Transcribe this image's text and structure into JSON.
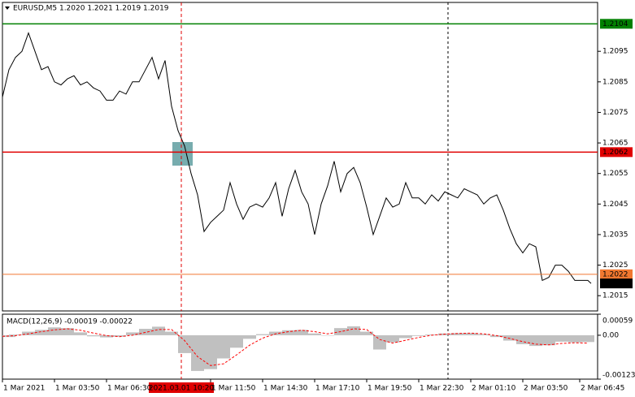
{
  "chart_data": [
    {
      "type": "line",
      "title": "EURUSD,M5  1.2020 1.2021 1.2019 1.2019",
      "color": "#000000",
      "x": [
        70,
        90,
        110,
        130,
        150,
        170,
        190,
        210,
        230,
        250,
        270,
        290,
        310,
        330,
        350,
        370,
        390,
        410,
        430,
        450,
        470,
        490,
        510,
        530,
        550,
        570,
        590,
        610,
        630,
        650,
        670,
        690,
        710,
        730,
        750,
        770,
        790,
        810,
        830,
        850,
        870,
        890,
        910,
        930,
        950,
        970,
        990,
        1010,
        1030,
        1050,
        1070,
        1090,
        1110,
        1130,
        1150,
        1170,
        1190,
        1210,
        1230,
        1250,
        1270,
        1290,
        1310,
        1330,
        1350,
        1370,
        1390,
        1410,
        1430,
        1450,
        1470,
        1490,
        1510,
        1530,
        1550,
        1570,
        1590,
        1610,
        1630,
        1650,
        1670,
        1690,
        1710,
        1730,
        1750,
        1770,
        1790,
        1810,
        1830,
        1850,
        1870,
        1880
      ],
      "values": [
        1.208,
        1.2089,
        1.2093,
        1.2095,
        1.2101,
        1.2095,
        1.2089,
        1.209,
        1.2085,
        1.2084,
        1.2086,
        1.2087,
        1.2084,
        1.2085,
        1.2083,
        1.2082,
        1.2079,
        1.2079,
        1.2082,
        1.2081,
        1.2085,
        1.2085,
        1.2089,
        1.2093,
        1.2086,
        1.2092,
        1.2077,
        1.2069,
        1.2064,
        1.2055,
        1.2048,
        1.2036,
        1.2039,
        1.2041,
        1.2043,
        1.2052,
        1.2045,
        1.204,
        1.2044,
        1.2045,
        1.2044,
        1.2047,
        1.2052,
        1.2041,
        1.205,
        1.2056,
        1.2049,
        1.2045,
        1.2035,
        1.2045,
        1.2051,
        1.2059,
        1.2049,
        1.2055,
        1.2057,
        1.2052,
        1.2044,
        1.2035,
        1.2041,
        1.2047,
        1.2044,
        1.2045,
        1.2052,
        1.2047,
        1.2047,
        1.2045,
        1.2048,
        1.2046,
        1.2049,
        1.2048,
        1.2047,
        1.205,
        1.2049,
        1.2048,
        1.2045,
        1.2047,
        1.2048,
        1.2043,
        1.2037,
        1.2032,
        1.2029,
        1.2032,
        1.2031,
        1.202,
        1.2021,
        1.2025,
        1.2025,
        1.2023,
        1.202,
        1.202,
        1.202,
        1.2019
      ],
      "xlim": [
        70,
        1900
      ],
      "ylim": [
        1.201,
        1.2111
      ],
      "yticks": [
        1.2015,
        1.2025,
        1.2035,
        1.2045,
        1.2055,
        1.2065,
        1.2075,
        1.2085,
        1.2095
      ],
      "xticks": [
        {
          "value": 70,
          "label": "1 Mar 2021"
        },
        {
          "value": 230,
          "label": "1 Mar 03:50"
        },
        {
          "value": 390,
          "label": "1 Mar 06:30"
        },
        {
          "value": 710,
          "label": "1 Mar 11:50"
        },
        {
          "value": 870,
          "label": "1 Mar 14:30"
        },
        {
          "value": 1030,
          "label": "1 Mar 17:10"
        },
        {
          "value": 1190,
          "label": "1 Mar 19:50"
        },
        {
          "value": 1350,
          "label": "1 Mar 22:30"
        },
        {
          "value": 1510,
          "label": "2 Mar 01:10"
        },
        {
          "value": 1670,
          "label": "2 Mar 03:50"
        },
        {
          "value": 1845,
          "label": "2 Mar 06:45"
        }
      ],
      "crosshair": {
        "value": 620,
        "label": "2021.03.01 10:20",
        "color": "#e00000"
      },
      "levels": [
        {
          "value": 1.2104,
          "color": "#008000"
        },
        {
          "value": 1.2062,
          "color": "#e00000"
        },
        {
          "value": 1.2022,
          "color": "#f07830"
        }
      ],
      "current": 1.2019
    },
    {
      "type": "macd",
      "title": "MACD(12,26,9) -0.00019 -0.00022",
      "x": [
        70,
        110,
        150,
        190,
        230,
        270,
        310,
        350,
        390,
        430,
        470,
        510,
        550,
        590,
        630,
        670,
        710,
        750,
        790,
        830,
        870,
        910,
        950,
        990,
        1030,
        1070,
        1110,
        1150,
        1190,
        1230,
        1270,
        1310,
        1350,
        1390,
        1430,
        1470,
        1510,
        1550,
        1590,
        1630,
        1670,
        1710,
        1750,
        1790,
        1830,
        1870
      ],
      "series": [
        {
          "style": "bar",
          "color": "#c0c0c0",
          "values": [
            -5e-05,
            2e-05,
            0.0001,
            0.00015,
            0.00022,
            0.0002,
            8e-05,
            -3e-05,
            -6e-05,
            -4e-05,
            8e-05,
            0.00018,
            0.00024,
            0.0001,
            -0.0005,
            -0.001,
            -0.00095,
            -0.00065,
            -0.00035,
            -0.0001,
            3e-05,
            0.0001,
            0.00014,
            0.00015,
            5e-05,
            0,
            0.0002,
            0.00025,
            0.0001,
            -0.0004,
            -0.0002,
            -8e-05,
            -2e-05,
            2e-05,
            5e-05,
            6e-05,
            6e-05,
            3e-05,
            -5e-05,
            -0.00015,
            -0.00025,
            -0.0003,
            -0.00028,
            -0.00018,
            -0.0002,
            -0.00019
          ]
        },
        {
          "style": "dashed",
          "color": "#ff0000",
          "values": [
            -3e-05,
            -1e-05,
            4e-05,
            0.0001,
            0.00015,
            0.00018,
            0.00014,
            6e-05,
            -1e-05,
            -4e-05,
            0,
            8e-05,
            0.00016,
            0.00016,
            -0.00015,
            -0.0006,
            -0.00085,
            -0.0008,
            -0.00055,
            -0.00028,
            -8e-05,
            4e-05,
            0.0001,
            0.00014,
            0.0001,
            4e-05,
            0.0001,
            0.00018,
            0.00016,
            -0.00012,
            -0.00022,
            -0.00014,
            -6e-05,
            0,
            3e-05,
            5e-05,
            6e-05,
            4e-05,
            -1e-05,
            -9e-05,
            -0.00018,
            -0.00025,
            -0.00027,
            -0.00023,
            -0.00021,
            -0.00022
          ]
        }
      ],
      "xlim": [
        70,
        1900
      ],
      "ylim": [
        -0.00123,
        0.00059
      ],
      "yticks": [
        0.00059,
        {
          "value": 0,
          "label": "0.00"
        },
        -0.00123
      ]
    }
  ]
}
